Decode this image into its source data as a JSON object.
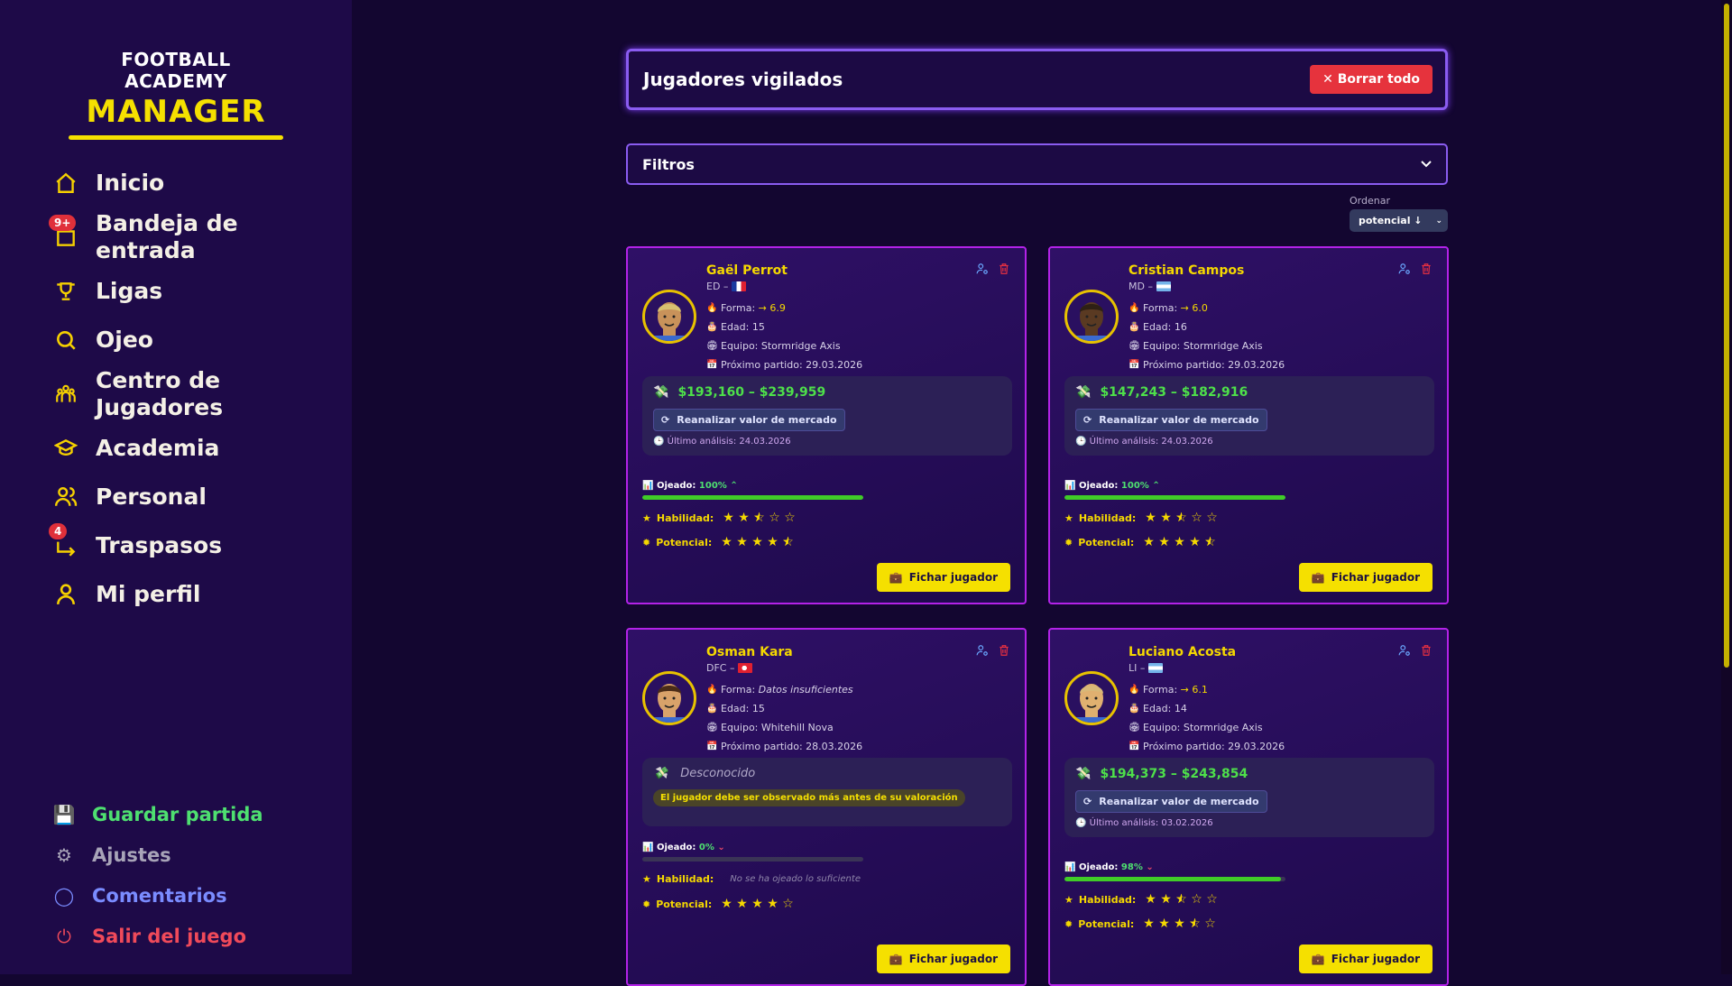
{
  "brand": {
    "line1": "FOOTBALL ACADEMY",
    "line2": "MANAGER"
  },
  "nav": [
    {
      "label": "Inicio",
      "icon": "home-icon"
    },
    {
      "label": "Bandeja de entrada",
      "icon": "inbox-icon",
      "badge": "9+"
    },
    {
      "label": "Ligas",
      "icon": "trophy-icon"
    },
    {
      "label": "Ojeo",
      "icon": "search-icon"
    },
    {
      "label": "Centro de Jugadores",
      "icon": "players-icon"
    },
    {
      "label": "Academia",
      "icon": "graduation-cap-icon"
    },
    {
      "label": "Personal",
      "icon": "staff-icon"
    },
    {
      "label": "Traspasos",
      "icon": "transfer-icon",
      "badge": "4"
    },
    {
      "label": "Mi perfil",
      "icon": "user-icon"
    }
  ],
  "bottom": [
    {
      "label": "Guardar partida",
      "icon": "save-icon",
      "color": "#4ee070"
    },
    {
      "label": "Ajustes",
      "icon": "gear-icon",
      "color": "#a8a4b8"
    },
    {
      "label": "Comentarios",
      "icon": "comment-icon",
      "color": "#7a8cff"
    },
    {
      "label": "Salir del juego",
      "icon": "power-icon",
      "color": "#f04a5a"
    }
  ],
  "header": {
    "title": "Jugadores vigilados",
    "clear_label": "Borrar todo"
  },
  "filters": {
    "label": "Filtros"
  },
  "sort": {
    "label": "Ordenar",
    "value": "potencial ↓"
  },
  "labels": {
    "forma": "Forma:",
    "edad": "Edad:",
    "equipo": "Equipo:",
    "proximo": "Próximo partido:",
    "reanalizar": "Reanalizar valor de mercado",
    "ultimo": "Último análisis:",
    "ojeado": "Ojeado:",
    "habilidad": "Habilidad:",
    "potencial": "Potencial:",
    "fichar": "Fichar jugador"
  },
  "players": [
    {
      "name": "Gaël Perrot",
      "pos": "ED –",
      "flag": "france",
      "forma": "6.9",
      "edad": "15",
      "equipo": "Stormridge Axis",
      "proximo": "29.03.2026",
      "value": "$193,160 – $239,959",
      "ultimo": "24.03.2026",
      "ojeado": "100%",
      "ojeado_trend": "up",
      "habilidad": 2.5,
      "potencial": 4.5,
      "skin": "#c8925a",
      "hair": "#d8c070"
    },
    {
      "name": "Cristian Campos",
      "pos": "MD –",
      "flag": "argentina",
      "forma": "6.0",
      "edad": "16",
      "equipo": "Stormridge Axis",
      "proximo": "29.03.2026",
      "value": "$147,243 – $182,916",
      "ultimo": "24.03.2026",
      "ojeado": "100%",
      "ojeado_trend": "up",
      "habilidad": 2.5,
      "potencial": 4.5,
      "skin": "#5a3a22",
      "hair": "#2e2014"
    },
    {
      "name": "Osman Kara",
      "pos": "DFC –",
      "flag": "turkey",
      "forma_note": "Datos insuficientes",
      "edad": "15",
      "equipo": "Whitehill Nova",
      "proximo": "28.03.2026",
      "value_unknown": "Desconocido",
      "warning": "El jugador debe ser observado más antes de su valoración",
      "ojeado": "0%",
      "ojeado_trend": "down",
      "habilidad_note": "No se ha ojeado lo suficiente",
      "potencial": 4,
      "skin": "#d8a26a",
      "hair": "#4a2c18"
    },
    {
      "name": "Luciano Acosta",
      "pos": "LI –",
      "flag": "argentina",
      "forma": "6.1",
      "edad": "14",
      "equipo": "Stormridge Axis",
      "proximo": "29.03.2026",
      "value": "$194,373 – $243,854",
      "ultimo": "03.02.2026",
      "ojeado": "98%",
      "ojeado_trend": "down",
      "habilidad": 2.5,
      "potencial": 3.5,
      "skin": "#e0b070",
      "hair": "#d8b878"
    }
  ]
}
